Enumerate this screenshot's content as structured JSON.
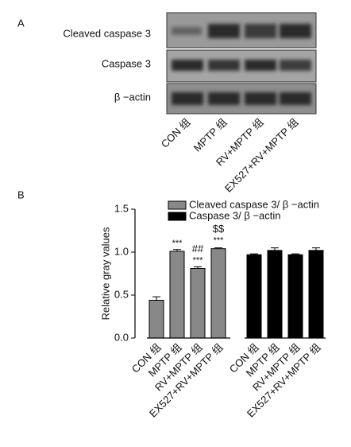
{
  "panels": [
    "A",
    "B"
  ],
  "blot": {
    "rows": [
      "Cleaved caspase 3",
      "Caspase 3",
      "β −actin"
    ]
  },
  "chart_data": {
    "type": "bar",
    "categories": [
      "CON 组",
      "MPTP 组",
      "RV+MPTP 组",
      "EX527+RV+MPTP 组"
    ],
    "y_label": "Relative gray values",
    "series": [
      {
        "name": "Cleaved caspase 3/ β −actin",
        "color": "#888888",
        "values": [
          0.44,
          1.01,
          0.81,
          1.04
        ],
        "errors": [
          0.04,
          0.02,
          0.02,
          0.01
        ],
        "labels_above": [
          null,
          [
            "***"
          ],
          [
            "***",
            "##"
          ],
          [
            "***",
            "$$"
          ]
        ]
      },
      {
        "name": "Caspase 3/ β −actin",
        "color": "#000000",
        "values": [
          0.97,
          1.02,
          0.97,
          1.02
        ],
        "errors": [
          0.01,
          0.03,
          0.01,
          0.03
        ]
      }
    ],
    "ylim": [
      0,
      1.5
    ],
    "yticks": [
      {
        "value": 0,
        "label": "0.0"
      },
      0.5,
      {
        "value": 1,
        "label": "1.0"
      },
      1.5
    ],
    "legend": "top"
  }
}
